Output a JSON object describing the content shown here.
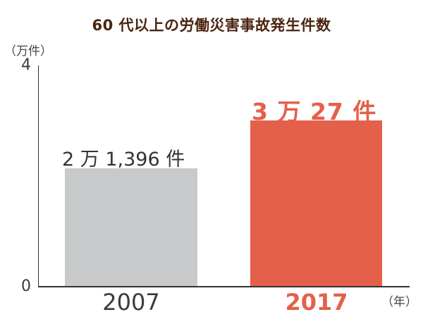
{
  "chart_data": {
    "type": "bar",
    "title": "60 代以上の労働災害事故発生件数",
    "ylabel": "（万件）",
    "xlabel": "（年）",
    "categories": [
      "2007",
      "2017"
    ],
    "values": [
      2.1396,
      3.0027
    ],
    "data_labels": [
      "2 万 1,396 件",
      "3 万 27 件"
    ],
    "ylim": [
      0,
      4
    ],
    "yticks": [
      "0",
      "4"
    ],
    "grid": false,
    "legend": null,
    "colors": [
      "#c8c9ca",
      "#e5604a"
    ]
  },
  "colors": {
    "title": "#4a2510",
    "bar_2007": "#c8c9ca",
    "bar_2017": "#e5604a",
    "text_dark": "#333333"
  }
}
